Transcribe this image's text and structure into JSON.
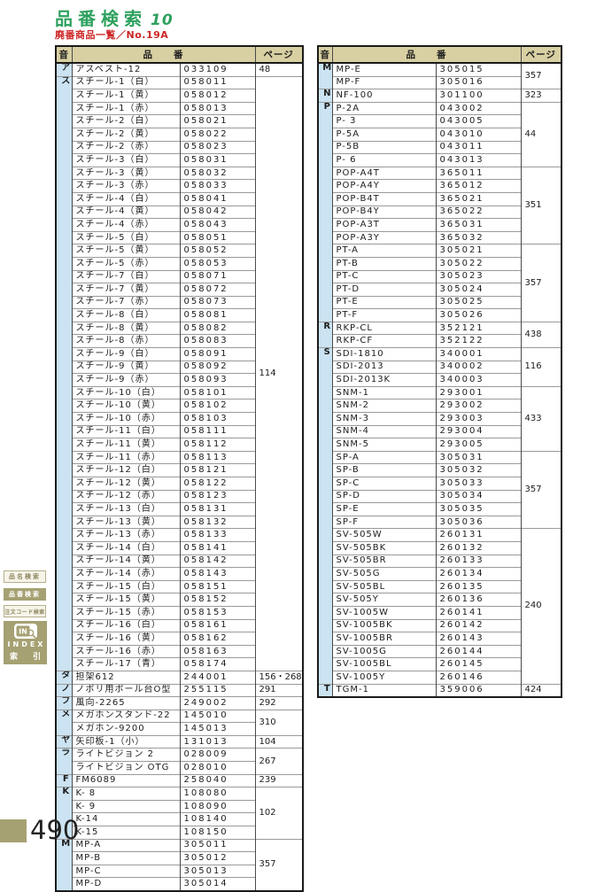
{
  "page": {
    "title": "品番検索",
    "title_number": "10",
    "subtitle": "廃番商品一覧／No.19A",
    "page_number": "490"
  },
  "colors": {
    "title_green": "#2ea15e",
    "subtitle_red": "#cc2726",
    "header_tan": "#d8d0a2",
    "kana_col_blue": "#cbe3f2",
    "sidebar_olive": "#a6a172"
  },
  "sidebar": {
    "tabs": [
      {
        "label": "品名検索",
        "active": false
      },
      {
        "label": "品番検索",
        "active": true
      },
      {
        "label": "注文コード検索",
        "active": false
      }
    ],
    "index_logo_text": "IN",
    "index_word": "INDEX",
    "index_kanji_left": "索",
    "index_kanji_right": "引"
  },
  "table_headers": {
    "on": "音",
    "hinban": "品　　番",
    "page": "ページ"
  },
  "tables": [
    {
      "side": "left",
      "groups": [
        {
          "letter": "ア",
          "items": [
            [
              "アスベスト-12",
              "033109"
            ]
          ],
          "pages": [
            [
              "48",
              1
            ]
          ]
        },
        {
          "letter": "ス",
          "items": [
            [
              "スチール-1（白）",
              "058011"
            ],
            [
              "スチール-1（黄）",
              "058012"
            ],
            [
              "スチール-1（赤）",
              "058013"
            ],
            [
              "スチール-2（白）",
              "058021"
            ],
            [
              "スチール-2（黄）",
              "058022"
            ],
            [
              "スチール-2（赤）",
              "058023"
            ],
            [
              "スチール-3（白）",
              "058031"
            ],
            [
              "スチール-3（黄）",
              "058032"
            ],
            [
              "スチール-3（赤）",
              "058033"
            ],
            [
              "スチール-4（白）",
              "058041"
            ],
            [
              "スチール-4（黄）",
              "058042"
            ],
            [
              "スチール-4（赤）",
              "058043"
            ],
            [
              "スチール-5（白）",
              "058051"
            ],
            [
              "スチール-5（黄）",
              "058052"
            ],
            [
              "スチール-5（赤）",
              "058053"
            ],
            [
              "スチール-7（白）",
              "058071"
            ],
            [
              "スチール-7（黄）",
              "058072"
            ],
            [
              "スチール-7（赤）",
              "058073"
            ],
            [
              "スチール-8（白）",
              "058081"
            ],
            [
              "スチール-8（黄）",
              "058082"
            ],
            [
              "スチール-8（赤）",
              "058083"
            ],
            [
              "スチール-9（白）",
              "058091"
            ],
            [
              "スチール-9（黄）",
              "058092"
            ],
            [
              "スチール-9（赤）",
              "058093"
            ],
            [
              "スチール-10（白）",
              "058101"
            ],
            [
              "スチール-10（黄）",
              "058102"
            ],
            [
              "スチール-10（赤）",
              "058103"
            ],
            [
              "スチール-11（白）",
              "058111"
            ],
            [
              "スチール-11（黄）",
              "058112"
            ],
            [
              "スチール-11（赤）",
              "058113"
            ],
            [
              "スチール-12（白）",
              "058121"
            ],
            [
              "スチール-12（黄）",
              "058122"
            ],
            [
              "スチール-12（赤）",
              "058123"
            ],
            [
              "スチール-13（白）",
              "058131"
            ],
            [
              "スチール-13（黄）",
              "058132"
            ],
            [
              "スチール-13（赤）",
              "058133"
            ],
            [
              "スチール-14（白）",
              "058141"
            ],
            [
              "スチール-14（黄）",
              "058142"
            ],
            [
              "スチール-14（赤）",
              "058143"
            ],
            [
              "スチール-15（白）",
              "058151"
            ],
            [
              "スチール-15（黄）",
              "058152"
            ],
            [
              "スチール-15（赤）",
              "058153"
            ],
            [
              "スチール-16（白）",
              "058161"
            ],
            [
              "スチール-16（黄）",
              "058162"
            ],
            [
              "スチール-16（赤）",
              "058163"
            ],
            [
              "スチール-17（青）",
              "058174"
            ]
          ],
          "pages": [
            [
              "114",
              46
            ]
          ]
        },
        {
          "letter": "タ",
          "items": [
            [
              "担架612",
              "244001"
            ]
          ],
          "pages": [
            [
              "156・268",
              1
            ]
          ]
        },
        {
          "letter": "ノ",
          "items": [
            [
              "ノボリ用ポール台O型",
              "255115"
            ]
          ],
          "pages": [
            [
              "291",
              1
            ]
          ]
        },
        {
          "letter": "フ",
          "items": [
            [
              "風向-2265",
              "249002"
            ]
          ],
          "pages": [
            [
              "292",
              1
            ]
          ]
        },
        {
          "letter": "メ",
          "items": [
            [
              "メガホンスタンド-22",
              "145010"
            ],
            [
              "メガホン-9200",
              "145013"
            ]
          ],
          "pages": [
            [
              "310",
              2
            ]
          ]
        },
        {
          "letter": "ヤ",
          "items": [
            [
              "矢印板-1（小）",
              "131013"
            ]
          ],
          "pages": [
            [
              "104",
              1
            ]
          ]
        },
        {
          "letter": "ラ",
          "items": [
            [
              "ライトビジョン 2",
              "028009"
            ],
            [
              "ライトビジョン OTG",
              "028010"
            ]
          ],
          "pages": [
            [
              "267",
              2
            ]
          ]
        },
        {
          "letter": "F",
          "items": [
            [
              "FM6089",
              "258040"
            ]
          ],
          "pages": [
            [
              "239",
              1
            ]
          ]
        },
        {
          "letter": "K",
          "items": [
            [
              "K- 8",
              "108080"
            ],
            [
              "K- 9",
              "108090"
            ],
            [
              "K-14",
              "108140"
            ],
            [
              "K-15",
              "108150"
            ]
          ],
          "pages": [
            [
              "102",
              4
            ]
          ]
        },
        {
          "letter": "M",
          "items": [
            [
              "MP-A",
              "305011"
            ],
            [
              "MP-B",
              "305012"
            ],
            [
              "MP-C",
              "305013"
            ],
            [
              "MP-D",
              "305014"
            ]
          ],
          "pages": [
            [
              "357",
              4
            ]
          ]
        }
      ]
    },
    {
      "side": "right",
      "groups": [
        {
          "letter": "M",
          "items": [
            [
              "MP-E",
              "305015"
            ],
            [
              "MP-F",
              "305016"
            ]
          ],
          "pages": [
            [
              "357",
              2
            ]
          ]
        },
        {
          "letter": "N",
          "items": [
            [
              "NF-100",
              "301100"
            ]
          ],
          "pages": [
            [
              "323",
              1
            ]
          ]
        },
        {
          "letter": "P",
          "items": [
            [
              "P-2A",
              "043002"
            ],
            [
              "P- 3",
              "043005"
            ],
            [
              "P-5A",
              "043010"
            ],
            [
              "P-5B",
              "043011"
            ],
            [
              "P- 6",
              "043013"
            ],
            [
              "POP-A4T",
              "365011"
            ],
            [
              "POP-A4Y",
              "365012"
            ],
            [
              "POP-B4T",
              "365021"
            ],
            [
              "POP-B4Y",
              "365022"
            ],
            [
              "POP-A3T",
              "365031"
            ],
            [
              "POP-A3Y",
              "365032"
            ],
            [
              "PT-A",
              "305021"
            ],
            [
              "PT-B",
              "305022"
            ],
            [
              "PT-C",
              "305023"
            ],
            [
              "PT-D",
              "305024"
            ],
            [
              "PT-E",
              "305025"
            ],
            [
              "PT-F",
              "305026"
            ]
          ],
          "pages": [
            [
              "44",
              5
            ],
            [
              "351",
              6
            ],
            [
              "357",
              6
            ]
          ]
        },
        {
          "letter": "R",
          "items": [
            [
              "RKP-CL",
              "352121"
            ],
            [
              "RKP-CF",
              "352122"
            ]
          ],
          "pages": [
            [
              "438",
              2
            ]
          ]
        },
        {
          "letter": "S",
          "items": [
            [
              "SDI-1810",
              "340001"
            ],
            [
              "SDI-2013",
              "340002"
            ],
            [
              "SDI-2013K",
              "340003"
            ],
            [
              "SNM-1",
              "293001"
            ],
            [
              "SNM-2",
              "293002"
            ],
            [
              "SNM-3",
              "293003"
            ],
            [
              "SNM-4",
              "293004"
            ],
            [
              "SNM-5",
              "293005"
            ],
            [
              "SP-A",
              "305031"
            ],
            [
              "SP-B",
              "305032"
            ],
            [
              "SP-C",
              "305033"
            ],
            [
              "SP-D",
              "305034"
            ],
            [
              "SP-E",
              "305035"
            ],
            [
              "SP-F",
              "305036"
            ],
            [
              "SV-505W",
              "260131"
            ],
            [
              "SV-505BK",
              "260132"
            ],
            [
              "SV-505BR",
              "260133"
            ],
            [
              "SV-505G",
              "260134"
            ],
            [
              "SV-505BL",
              "260135"
            ],
            [
              "SV-505Y",
              "260136"
            ],
            [
              "SV-1005W",
              "260141"
            ],
            [
              "SV-1005BK",
              "260142"
            ],
            [
              "SV-1005BR",
              "260143"
            ],
            [
              "SV-1005G",
              "260144"
            ],
            [
              "SV-1005BL",
              "260145"
            ],
            [
              "SV-1005Y",
              "260146"
            ]
          ],
          "pages": [
            [
              "116",
              3
            ],
            [
              "433",
              5
            ],
            [
              "357",
              6
            ],
            [
              "240",
              12
            ]
          ]
        },
        {
          "letter": "T",
          "items": [
            [
              "TGM-1",
              "359006"
            ]
          ],
          "pages": [
            [
              "424",
              1
            ]
          ]
        }
      ]
    }
  ]
}
